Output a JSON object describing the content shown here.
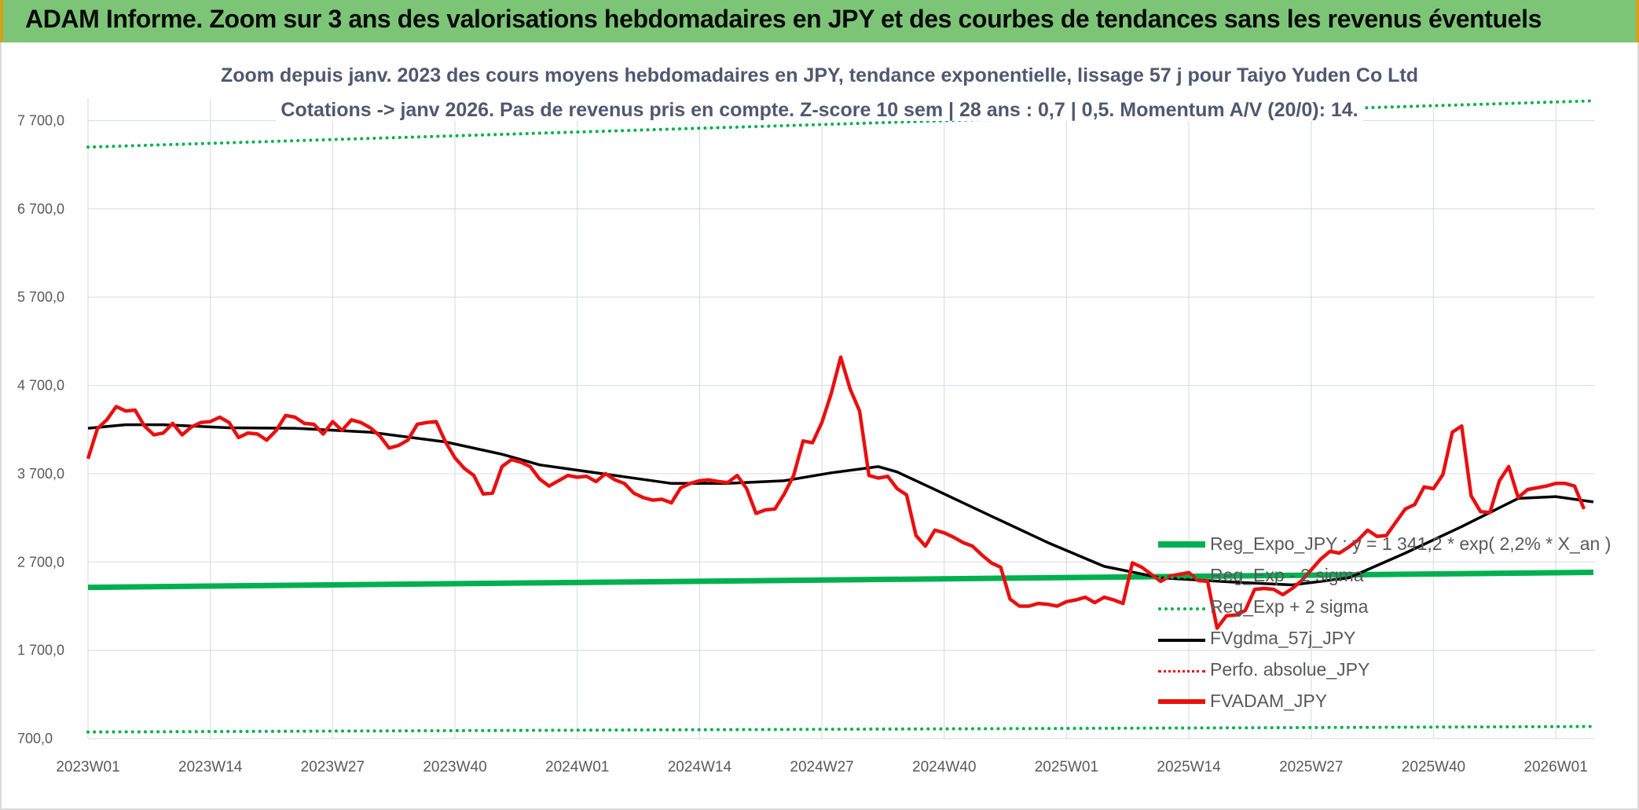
{
  "banner": {
    "title": "ADAM Informe. Zoom sur 3 ans des valorisations hebdomadaires en JPY et des courbes de tendances sans les revenus éventuels"
  },
  "chart_subtitle": {
    "line1": "Zoom depuis janv. 2023 des cours moyens hebdomadaires en JPY, tendance exponentielle, lissage 57 j pour Taiyo Yuden Co Ltd",
    "line2": "Cotations -> janv 2026. Pas de revenus pris en compte. Z-score 10 sem | 28 ans : 0,7 | 0,5. Momentum A/V (20/0): 14."
  },
  "colors": {
    "banner": "#7cc576",
    "reg_expo": "#00b050",
    "sma": "#000000",
    "price": "#e81010",
    "perfo": "#e81010",
    "grid": "#dcdfe4"
  },
  "chart_data": {
    "type": "line",
    "ylim": [
      700,
      8000
    ],
    "yticks": [
      "7 700,0",
      "6 700,0",
      "5 700,0",
      "4 700,0",
      "3 700,0",
      "2 700,0",
      "1 700,0",
      "700,0"
    ],
    "ytick_values": [
      7700,
      6700,
      5700,
      4700,
      3700,
      2700,
      1700,
      700
    ],
    "xticks": [
      "2023W01",
      "2023W14",
      "2023W27",
      "2023W40",
      "2024W01",
      "2024W14",
      "2024W27",
      "2024W40",
      "2025W01",
      "2025W14",
      "2025W27",
      "2025W40",
      "2026W01"
    ],
    "xtick_index": [
      0,
      13,
      26,
      39,
      52,
      65,
      78,
      91,
      104,
      117,
      130,
      143,
      156
    ],
    "n_weeks": 161,
    "grid": true,
    "legend_position": "bottom-right",
    "series": [
      {
        "name": "Reg_Expo_JPY : y = 1 341,2 * exp( 2,2% * X_an )",
        "key": "reg_expo",
        "style": "solid-thick",
        "points": [
          [
            0,
            2412
          ],
          [
            160,
            2582
          ]
        ]
      },
      {
        "name": "Reg_Exp - 2 sigma",
        "key": "reg_minus",
        "style": "dotted",
        "points": [
          [
            0,
            774
          ],
          [
            160,
            836
          ]
        ]
      },
      {
        "name": "Reg_Exp + 2 sigma",
        "key": "reg_plus",
        "style": "dotted",
        "points": [
          [
            0,
            7400
          ],
          [
            160,
            7924
          ]
        ]
      },
      {
        "name": "FVgdma_57j_JPY",
        "key": "sma",
        "style": "solid",
        "points": [
          [
            0,
            4215
          ],
          [
            4,
            4255
          ],
          [
            8,
            4255
          ],
          [
            15,
            4220
          ],
          [
            22,
            4215
          ],
          [
            30,
            4170
          ],
          [
            38,
            4060
          ],
          [
            44,
            3920
          ],
          [
            48,
            3800
          ],
          [
            56,
            3680
          ],
          [
            62,
            3590
          ],
          [
            68,
            3590
          ],
          [
            74,
            3620
          ],
          [
            79,
            3710
          ],
          [
            84,
            3780
          ],
          [
            86,
            3720
          ],
          [
            90,
            3520
          ],
          [
            96,
            3220
          ],
          [
            102,
            2920
          ],
          [
            108,
            2650
          ],
          [
            114,
            2520
          ],
          [
            122,
            2470
          ],
          [
            128,
            2440
          ],
          [
            134,
            2520
          ],
          [
            140,
            2800
          ],
          [
            146,
            3100
          ],
          [
            152,
            3420
          ],
          [
            156,
            3440
          ],
          [
            160,
            3380
          ]
        ]
      },
      {
        "name": "Perfo. absolue_JPY",
        "key": "perfo",
        "style": "dotted",
        "points": []
      },
      {
        "name": "FVADAM_JPY",
        "key": "price",
        "style": "solid-thick",
        "points": [
          [
            0,
            3870
          ],
          [
            1,
            4210
          ],
          [
            2,
            4310
          ],
          [
            3,
            4460
          ],
          [
            4,
            4410
          ],
          [
            5,
            4420
          ],
          [
            6,
            4240
          ],
          [
            7,
            4140
          ],
          [
            8,
            4160
          ],
          [
            9,
            4270
          ],
          [
            10,
            4140
          ],
          [
            11,
            4230
          ],
          [
            12,
            4280
          ],
          [
            13,
            4290
          ],
          [
            14,
            4340
          ],
          [
            15,
            4280
          ],
          [
            16,
            4110
          ],
          [
            17,
            4160
          ],
          [
            18,
            4150
          ],
          [
            19,
            4080
          ],
          [
            20,
            4190
          ],
          [
            21,
            4360
          ],
          [
            22,
            4340
          ],
          [
            23,
            4270
          ],
          [
            24,
            4260
          ],
          [
            25,
            4150
          ],
          [
            26,
            4290
          ],
          [
            27,
            4190
          ],
          [
            28,
            4310
          ],
          [
            29,
            4280
          ],
          [
            30,
            4220
          ],
          [
            31,
            4130
          ],
          [
            32,
            3990
          ],
          [
            33,
            4020
          ],
          [
            34,
            4080
          ],
          [
            35,
            4260
          ],
          [
            36,
            4280
          ],
          [
            37,
            4290
          ],
          [
            38,
            4060
          ],
          [
            39,
            3880
          ],
          [
            40,
            3760
          ],
          [
            41,
            3680
          ],
          [
            42,
            3470
          ],
          [
            43,
            3480
          ],
          [
            44,
            3780
          ],
          [
            45,
            3860
          ],
          [
            46,
            3830
          ],
          [
            47,
            3780
          ],
          [
            48,
            3640
          ],
          [
            49,
            3560
          ],
          [
            50,
            3620
          ],
          [
            51,
            3680
          ],
          [
            52,
            3660
          ],
          [
            53,
            3670
          ],
          [
            54,
            3610
          ],
          [
            55,
            3700
          ],
          [
            56,
            3630
          ],
          [
            57,
            3590
          ],
          [
            58,
            3480
          ],
          [
            59,
            3430
          ],
          [
            60,
            3400
          ],
          [
            61,
            3410
          ],
          [
            62,
            3370
          ],
          [
            63,
            3540
          ],
          [
            64,
            3590
          ],
          [
            65,
            3620
          ],
          [
            66,
            3630
          ],
          [
            67,
            3610
          ],
          [
            68,
            3600
          ],
          [
            69,
            3680
          ],
          [
            70,
            3530
          ],
          [
            71,
            3250
          ],
          [
            72,
            3290
          ],
          [
            73,
            3300
          ],
          [
            74,
            3470
          ],
          [
            75,
            3680
          ],
          [
            76,
            4070
          ],
          [
            77,
            4050
          ],
          [
            78,
            4280
          ],
          [
            79,
            4610
          ],
          [
            80,
            5020
          ],
          [
            81,
            4660
          ],
          [
            82,
            4410
          ],
          [
            83,
            3680
          ],
          [
            84,
            3650
          ],
          [
            85,
            3670
          ],
          [
            86,
            3530
          ],
          [
            87,
            3460
          ],
          [
            88,
            3000
          ],
          [
            89,
            2880
          ],
          [
            90,
            3060
          ],
          [
            91,
            3030
          ],
          [
            92,
            2980
          ],
          [
            93,
            2920
          ],
          [
            94,
            2880
          ],
          [
            95,
            2780
          ],
          [
            96,
            2690
          ],
          [
            97,
            2640
          ],
          [
            98,
            2280
          ],
          [
            99,
            2200
          ],
          [
            100,
            2200
          ],
          [
            101,
            2230
          ],
          [
            102,
            2220
          ],
          [
            103,
            2200
          ],
          [
            104,
            2250
          ],
          [
            105,
            2270
          ],
          [
            106,
            2300
          ],
          [
            107,
            2240
          ],
          [
            108,
            2300
          ],
          [
            109,
            2270
          ],
          [
            110,
            2230
          ],
          [
            111,
            2690
          ],
          [
            112,
            2640
          ],
          [
            113,
            2560
          ],
          [
            114,
            2480
          ],
          [
            115,
            2540
          ],
          [
            116,
            2560
          ],
          [
            117,
            2580
          ],
          [
            118,
            2490
          ],
          [
            119,
            2480
          ],
          [
            120,
            1950
          ],
          [
            121,
            2090
          ],
          [
            122,
            2100
          ],
          [
            123,
            2150
          ],
          [
            124,
            2390
          ],
          [
            125,
            2400
          ],
          [
            126,
            2390
          ],
          [
            127,
            2330
          ],
          [
            128,
            2400
          ],
          [
            129,
            2490
          ],
          [
            130,
            2610
          ],
          [
            131,
            2730
          ],
          [
            132,
            2820
          ],
          [
            133,
            2800
          ],
          [
            134,
            2870
          ],
          [
            135,
            2950
          ],
          [
            136,
            3060
          ],
          [
            137,
            2990
          ],
          [
            138,
            3000
          ],
          [
            139,
            3150
          ],
          [
            140,
            3300
          ],
          [
            141,
            3350
          ],
          [
            142,
            3550
          ],
          [
            143,
            3530
          ],
          [
            144,
            3690
          ],
          [
            145,
            4170
          ],
          [
            146,
            4240
          ],
          [
            147,
            3450
          ],
          [
            148,
            3270
          ],
          [
            149,
            3260
          ],
          [
            150,
            3620
          ],
          [
            151,
            3780
          ],
          [
            152,
            3430
          ],
          [
            153,
            3520
          ],
          [
            154,
            3540
          ],
          [
            155,
            3560
          ],
          [
            156,
            3590
          ],
          [
            157,
            3590
          ],
          [
            158,
            3560
          ],
          [
            159,
            3300
          ]
        ]
      }
    ]
  }
}
